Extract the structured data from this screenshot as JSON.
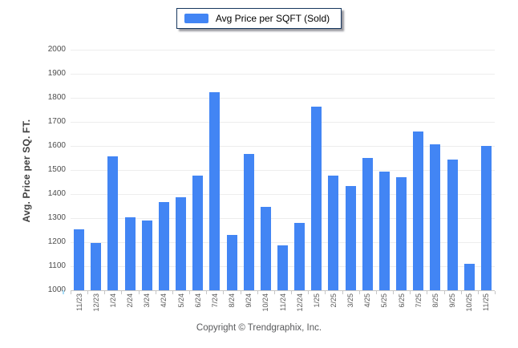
{
  "legend": {
    "label": "Avg Price per SQFT (Sold)",
    "swatch_color": "#4285f4"
  },
  "footer": {
    "copyright": "Copyright © Trendgraphix, Inc."
  },
  "colors": {
    "bar": "#4285f4",
    "gridline": "#ededed",
    "axis_line": "#c6c6c6",
    "y_label_text": "#4d4d4d",
    "x_label_text": "#595959",
    "legend_border": "#17375e",
    "y_title_text": "#3f3f3f",
    "footer_text": "#58595b"
  },
  "chart_data": {
    "type": "bar",
    "title": "",
    "xlabel": "",
    "ylabel": "Avg. Price per SQ. FT.",
    "legend_position": "top-center",
    "grid": true,
    "ylim": [
      1000,
      2000
    ],
    "ytick_step": 100,
    "series_name": "Avg Price per SQFT (Sold)",
    "categories": [
      "11/23",
      "12/23",
      "1/24",
      "2/24",
      "3/24",
      "4/24",
      "5/24",
      "6/24",
      "7/24",
      "8/24",
      "9/24",
      "10/24",
      "11/24",
      "12/24",
      "1/25",
      "2/25",
      "3/25",
      "4/25",
      "5/25",
      "6/25",
      "7/25",
      "8/25",
      "9/25",
      "10/25",
      "11/25"
    ],
    "values": [
      1255,
      1197,
      1556,
      1305,
      1289,
      1366,
      1388,
      1478,
      1822,
      1230,
      1568,
      1348,
      1188,
      1281,
      1763,
      1477,
      1435,
      1551,
      1495,
      1470,
      1661,
      1606,
      1542,
      1110,
      1601
    ]
  }
}
